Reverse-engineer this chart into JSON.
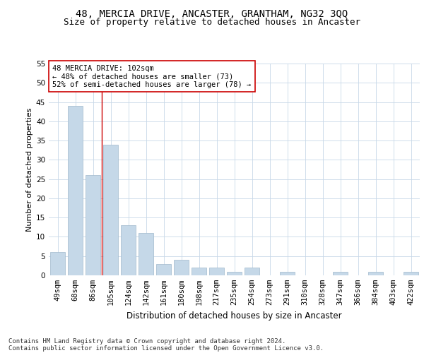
{
  "title1": "48, MERCIA DRIVE, ANCASTER, GRANTHAM, NG32 3QQ",
  "title2": "Size of property relative to detached houses in Ancaster",
  "xlabel": "Distribution of detached houses by size in Ancaster",
  "ylabel": "Number of detached properties",
  "categories": [
    "49sqm",
    "68sqm",
    "86sqm",
    "105sqm",
    "124sqm",
    "142sqm",
    "161sqm",
    "180sqm",
    "198sqm",
    "217sqm",
    "235sqm",
    "254sqm",
    "273sqm",
    "291sqm",
    "310sqm",
    "328sqm",
    "347sqm",
    "366sqm",
    "384sqm",
    "403sqm",
    "422sqm"
  ],
  "values": [
    6,
    44,
    26,
    34,
    13,
    11,
    3,
    4,
    2,
    2,
    1,
    2,
    0,
    1,
    0,
    0,
    1,
    0,
    1,
    0,
    1
  ],
  "bar_color": "#c5d8e8",
  "bar_edgecolor": "#a0b8cc",
  "vline_x": 2.5,
  "vline_color": "#cc0000",
  "annotation_line1": "48 MERCIA DRIVE: 102sqm",
  "annotation_line2": "← 48% of detached houses are smaller (73)",
  "annotation_line3": "52% of semi-detached houses are larger (78) →",
  "annotation_box_edgecolor": "#cc0000",
  "ylim": [
    0,
    55
  ],
  "yticks": [
    0,
    5,
    10,
    15,
    20,
    25,
    30,
    35,
    40,
    45,
    50,
    55
  ],
  "footer_line1": "Contains HM Land Registry data © Crown copyright and database right 2024.",
  "footer_line2": "Contains public sector information licensed under the Open Government Licence v3.0.",
  "bg_color": "#ffffff",
  "grid_color": "#c8d8e8",
  "title1_fontsize": 10,
  "title2_fontsize": 9,
  "ylabel_fontsize": 8,
  "xlabel_fontsize": 8.5,
  "tick_fontsize": 7.5,
  "annotation_fontsize": 7.5,
  "footer_fontsize": 6.5
}
